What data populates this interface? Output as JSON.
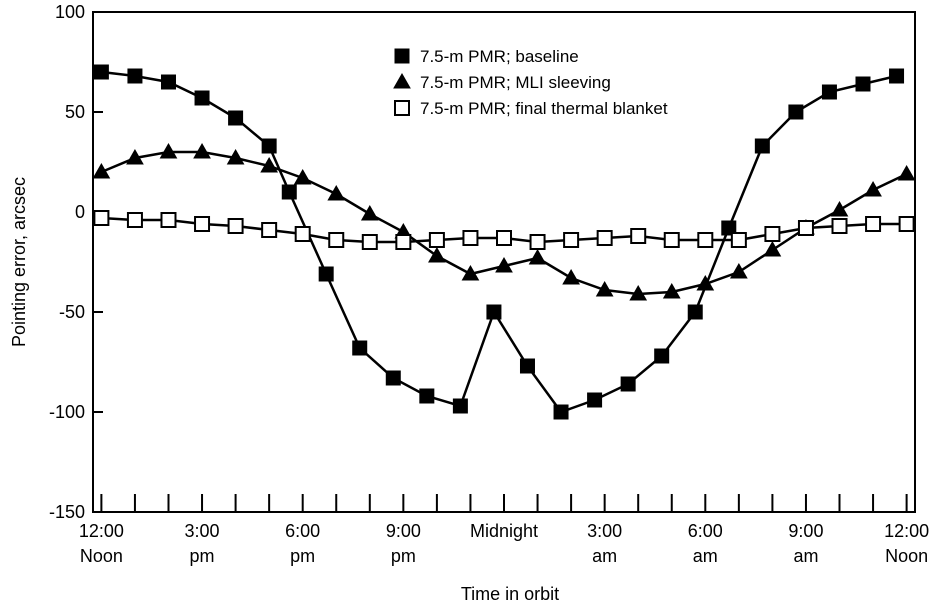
{
  "chart_data": {
    "type": "line",
    "title": "",
    "xlabel": "Time in orbit",
    "ylabel": "Pointing error, arcsec",
    "ylim": [
      -150,
      100
    ],
    "xlim": [
      -0.25,
      24.25
    ],
    "y_ticks": [
      100,
      50,
      0,
      -50,
      -100,
      -150
    ],
    "x_minor_ticks": [
      0,
      1,
      2,
      3,
      4,
      5,
      6,
      7,
      8,
      9,
      10,
      11,
      12,
      13,
      14,
      15,
      16,
      17,
      18,
      19,
      20,
      21,
      22,
      23,
      24
    ],
    "x_tick_labels": [
      {
        "x": 0,
        "line1": "12:00",
        "line2": "Noon"
      },
      {
        "x": 3,
        "line1": "3:00",
        "line2": "pm"
      },
      {
        "x": 6,
        "line1": "6:00",
        "line2": "pm"
      },
      {
        "x": 9,
        "line1": "9:00",
        "line2": "pm"
      },
      {
        "x": 12,
        "line1": "Midnight",
        "line2": ""
      },
      {
        "x": 15,
        "line1": "3:00",
        "line2": "am"
      },
      {
        "x": 18,
        "line1": "6:00",
        "line2": "am"
      },
      {
        "x": 21,
        "line1": "9:00",
        "line2": "am"
      },
      {
        "x": 24,
        "line1": "12:00",
        "line2": "Noon"
      }
    ],
    "grid": false,
    "legend_position": "top-right",
    "series": [
      {
        "name": "7.5-m PMR; baseline",
        "marker": "filled-square",
        "color": "#000000",
        "x": [
          0,
          1,
          2,
          3,
          4,
          5,
          5.6,
          6.7,
          7.7,
          8.7,
          9.7,
          10.7,
          11.7,
          12.7,
          13.7,
          14.7,
          15.7,
          16.7,
          17.7,
          18.7,
          19.7,
          20.7,
          21.7,
          22.7,
          23.7
        ],
        "values": [
          70,
          68,
          65,
          57,
          47,
          33,
          10,
          -31,
          -68,
          -83,
          -92,
          -97,
          -50,
          -77,
          -100,
          -94,
          -86,
          -72,
          -50,
          -8,
          33,
          50,
          60,
          64,
          68
        ]
      },
      {
        "name": "7.5-m PMR; MLI sleeving",
        "marker": "filled-triangle",
        "color": "#000000",
        "x": [
          0,
          1,
          2,
          3,
          4,
          5,
          6,
          7,
          8,
          9,
          10,
          11,
          12,
          13,
          14,
          15,
          16,
          17,
          18,
          19,
          20,
          21,
          22,
          23,
          24
        ],
        "values": [
          20,
          27,
          30,
          30,
          27,
          23,
          17,
          9,
          -1,
          -10,
          -22,
          -31,
          -27,
          -23,
          -33,
          -39,
          -41,
          -40,
          -36,
          -30,
          -19,
          -8,
          1,
          11,
          19
        ]
      },
      {
        "name": "7.5-m PMR; final thermal blanket",
        "marker": "open-square",
        "color": "#000000",
        "x": [
          0,
          1,
          2,
          3,
          4,
          5,
          6,
          7,
          8,
          9,
          10,
          11,
          12,
          13,
          14,
          15,
          16,
          17,
          18,
          19,
          20,
          21,
          22,
          23,
          24
        ],
        "values": [
          -3,
          -4,
          -4,
          -6,
          -7,
          -9,
          -11,
          -14,
          -15,
          -15,
          -14,
          -13,
          -13,
          -15,
          -14,
          -13,
          -12,
          -14,
          -14,
          -14,
          -11,
          -8,
          -7,
          -6,
          -6
        ]
      }
    ]
  }
}
